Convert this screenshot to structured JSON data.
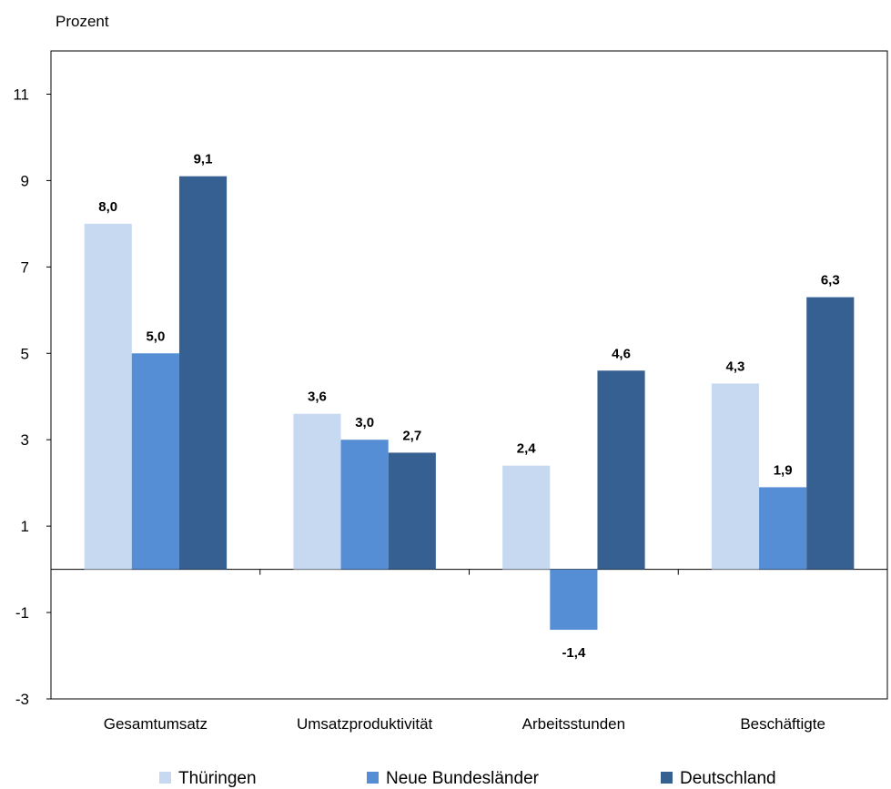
{
  "chart_data": {
    "type": "bar",
    "ylabel": "Prozent",
    "xlabel": "",
    "title": "",
    "ylim": [
      -3,
      12
    ],
    "yticks": [
      -3,
      -1,
      1,
      3,
      5,
      7,
      9,
      11
    ],
    "categories": [
      "Gesamtumsatz",
      "Umsatzproduktivität",
      "Arbeitsstunden",
      "Beschäftigte"
    ],
    "series": [
      {
        "name": "Thüringen",
        "color": "#c6d9f1",
        "values": [
          8.0,
          3.6,
          2.4,
          4.3
        ],
        "labels": [
          "8,0",
          "3,6",
          "2,4",
          "4,3"
        ]
      },
      {
        "name": "Neue Bundesländer",
        "color": "#558ed5",
        "values": [
          5.0,
          3.0,
          -1.4,
          1.9
        ],
        "labels": [
          "5,0",
          "3,0",
          "-1,4",
          "1,9"
        ]
      },
      {
        "name": "Deutschland",
        "color": "#376092",
        "values": [
          9.1,
          2.7,
          4.6,
          6.3
        ],
        "labels": [
          "9,1",
          "2,7",
          "4,6",
          "6,3"
        ]
      }
    ],
    "grid": false,
    "legend_position": "bottom"
  }
}
